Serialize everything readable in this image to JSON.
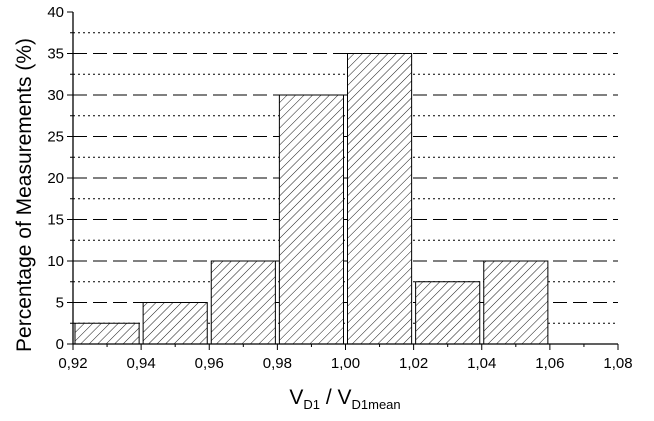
{
  "chart_data": {
    "type": "bar",
    "bar_fill": "diagonal-hatch",
    "bar_color": "#000000",
    "background_color": "#ffffff",
    "grid": true,
    "grid_style": "major dashed, minor dotted",
    "xlabel": {
      "main": "V",
      "sub1": "D1",
      "separator": " / V",
      "sub2": "D1mean"
    },
    "ylabel": "Percentage of Measurements (%)",
    "xlim": [
      0.92,
      1.08
    ],
    "ylim": [
      0,
      40
    ],
    "x_ticks": [
      0.92,
      0.94,
      0.96,
      0.98,
      1.0,
      1.02,
      1.04,
      1.06,
      1.08
    ],
    "x_tick_labels": [
      "0,92",
      "0,94",
      "0,96",
      "0,98",
      "1,00",
      "1,02",
      "1,04",
      "1,06",
      "1,08"
    ],
    "y_ticks": [
      0,
      5,
      10,
      15,
      20,
      25,
      30,
      35,
      40
    ],
    "y_tick_labels": [
      "0",
      "5",
      "10",
      "15",
      "20",
      "25",
      "30",
      "35",
      "40"
    ],
    "y_minor_step": 2.5,
    "bin_width": 0.02,
    "bins": [
      {
        "start": 0.92,
        "end": 0.94,
        "value": 2.5
      },
      {
        "start": 0.94,
        "end": 0.96,
        "value": 5
      },
      {
        "start": 0.96,
        "end": 0.98,
        "value": 10
      },
      {
        "start": 0.98,
        "end": 1.0,
        "value": 30
      },
      {
        "start": 1.0,
        "end": 1.02,
        "value": 35
      },
      {
        "start": 1.02,
        "end": 1.04,
        "value": 7.5
      },
      {
        "start": 1.04,
        "end": 1.06,
        "value": 10
      }
    ]
  }
}
